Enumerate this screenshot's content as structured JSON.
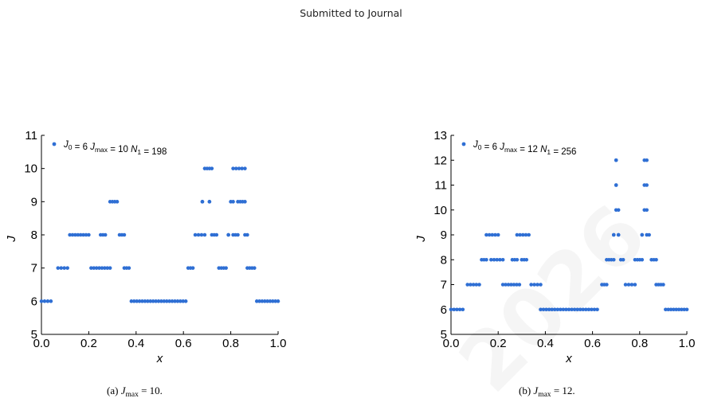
{
  "header": {
    "text": "Submitted to Journal"
  },
  "watermark": {
    "text": "2026"
  },
  "colors": {
    "points": "#2f6fd4"
  },
  "chart_data": [
    {
      "type": "scatter",
      "xlabel": "x",
      "ylabel": "J",
      "xlim": [
        0.0,
        1.0
      ],
      "ylim": [
        5,
        11
      ],
      "xticks": [
        "0.0",
        "0.2",
        "0.4",
        "0.6",
        "0.8",
        "1.0"
      ],
      "yticks": [
        "5",
        "6",
        "7",
        "8",
        "9",
        "10",
        "11"
      ],
      "legend": {
        "placement": "top-left",
        "J0": "6",
        "Jmax": "10",
        "N1": "198"
      },
      "caption": {
        "label": "(a)",
        "value": "10"
      },
      "segments": [
        {
          "x0": 0.0,
          "x1": 0.04,
          "y": 6
        },
        {
          "x0": 0.07,
          "x1": 0.11,
          "y": 7
        },
        {
          "x0": 0.12,
          "x1": 0.2,
          "y": 8
        },
        {
          "x0": 0.21,
          "x1": 0.29,
          "y": 7
        },
        {
          "x0": 0.25,
          "x1": 0.27,
          "y": 8
        },
        {
          "x0": 0.29,
          "x1": 0.32,
          "y": 9
        },
        {
          "x0": 0.33,
          "x1": 0.35,
          "y": 8
        },
        {
          "x0": 0.35,
          "x1": 0.37,
          "y": 7
        },
        {
          "x0": 0.38,
          "x1": 0.61,
          "y": 6
        },
        {
          "x0": 0.62,
          "x1": 0.64,
          "y": 7
        },
        {
          "x0": 0.65,
          "x1": 0.69,
          "y": 8
        },
        {
          "x0": 0.68,
          "x1": 0.68,
          "y": 9
        },
        {
          "x0": 0.69,
          "x1": 0.72,
          "y": 10
        },
        {
          "x0": 0.71,
          "x1": 0.71,
          "y": 9
        },
        {
          "x0": 0.72,
          "x1": 0.74,
          "y": 8
        },
        {
          "x0": 0.75,
          "x1": 0.78,
          "y": 7
        },
        {
          "x0": 0.79,
          "x1": 0.79,
          "y": 8
        },
        {
          "x0": 0.81,
          "x1": 0.83,
          "y": 8
        },
        {
          "x0": 0.8,
          "x1": 0.81,
          "y": 9
        },
        {
          "x0": 0.81,
          "x1": 0.86,
          "y": 10
        },
        {
          "x0": 0.83,
          "x1": 0.86,
          "y": 9
        },
        {
          "x0": 0.86,
          "x1": 0.87,
          "y": 8
        },
        {
          "x0": 0.87,
          "x1": 0.9,
          "y": 7
        },
        {
          "x0": 0.91,
          "x1": 1.0,
          "y": 6
        }
      ]
    },
    {
      "type": "scatter",
      "xlabel": "x",
      "ylabel": "J",
      "xlim": [
        0.0,
        1.0
      ],
      "ylim": [
        5,
        13
      ],
      "xticks": [
        "0.0",
        "0.2",
        "0.4",
        "0.6",
        "0.8",
        "1.0"
      ],
      "yticks": [
        "5",
        "6",
        "7",
        "8",
        "9",
        "10",
        "11",
        "12",
        "13"
      ],
      "legend": {
        "placement": "top-left",
        "J0": "6",
        "Jmax": "12",
        "N1": "256"
      },
      "caption": {
        "label": "(b)",
        "value": "12"
      },
      "segments": [
        {
          "x0": 0.0,
          "x1": 0.05,
          "y": 6
        },
        {
          "x0": 0.07,
          "x1": 0.12,
          "y": 7
        },
        {
          "x0": 0.13,
          "x1": 0.15,
          "y": 8
        },
        {
          "x0": 0.15,
          "x1": 0.2,
          "y": 9
        },
        {
          "x0": 0.17,
          "x1": 0.22,
          "y": 8
        },
        {
          "x0": 0.22,
          "x1": 0.29,
          "y": 7
        },
        {
          "x0": 0.26,
          "x1": 0.28,
          "y": 8
        },
        {
          "x0": 0.28,
          "x1": 0.33,
          "y": 9
        },
        {
          "x0": 0.3,
          "x1": 0.32,
          "y": 8
        },
        {
          "x0": 0.34,
          "x1": 0.38,
          "y": 7
        },
        {
          "x0": 0.38,
          "x1": 0.62,
          "y": 6
        },
        {
          "x0": 0.64,
          "x1": 0.66,
          "y": 7
        },
        {
          "x0": 0.66,
          "x1": 0.69,
          "y": 8
        },
        {
          "x0": 0.69,
          "x1": 0.69,
          "y": 9
        },
        {
          "x0": 0.7,
          "x1": 0.71,
          "y": 10
        },
        {
          "x0": 0.7,
          "x1": 0.7,
          "y": 11
        },
        {
          "x0": 0.7,
          "x1": 0.7,
          "y": 12
        },
        {
          "x0": 0.71,
          "x1": 0.71,
          "y": 9
        },
        {
          "x0": 0.72,
          "x1": 0.73,
          "y": 8
        },
        {
          "x0": 0.74,
          "x1": 0.78,
          "y": 7
        },
        {
          "x0": 0.78,
          "x1": 0.81,
          "y": 8
        },
        {
          "x0": 0.81,
          "x1": 0.81,
          "y": 9
        },
        {
          "x0": 0.82,
          "x1": 0.83,
          "y": 10
        },
        {
          "x0": 0.82,
          "x1": 0.83,
          "y": 11
        },
        {
          "x0": 0.82,
          "x1": 0.83,
          "y": 12
        },
        {
          "x0": 0.83,
          "x1": 0.84,
          "y": 9
        },
        {
          "x0": 0.85,
          "x1": 0.87,
          "y": 8
        },
        {
          "x0": 0.87,
          "x1": 0.9,
          "y": 7
        },
        {
          "x0": 0.91,
          "x1": 1.0,
          "y": 6
        }
      ]
    }
  ]
}
